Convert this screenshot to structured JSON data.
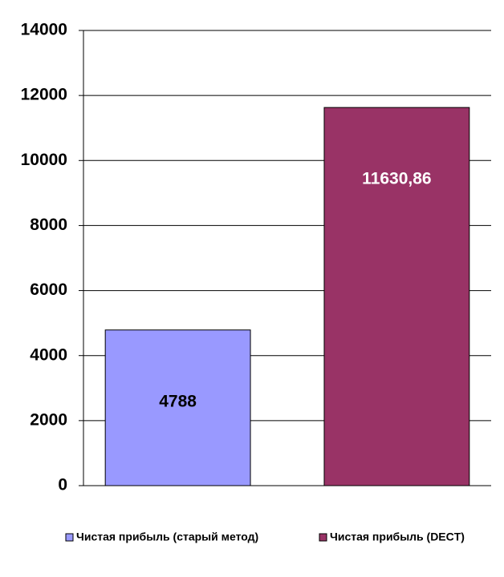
{
  "chart_data": {
    "type": "bar",
    "categories": [
      null
    ],
    "series": [
      {
        "name": "Чистая прибыль (старый метод)",
        "color": "#9999ff",
        "values": [
          4788
        ]
      },
      {
        "name": "Чистая прибыль (DECT)",
        "color": "#993366",
        "values": [
          11630.86
        ],
        "value_labels": [
          "11630,86"
        ]
      }
    ],
    "ylim": [
      0,
      14000
    ],
    "yticks": [
      0,
      2000,
      4000,
      6000,
      8000,
      10000,
      12000,
      14000
    ],
    "grid": true
  }
}
